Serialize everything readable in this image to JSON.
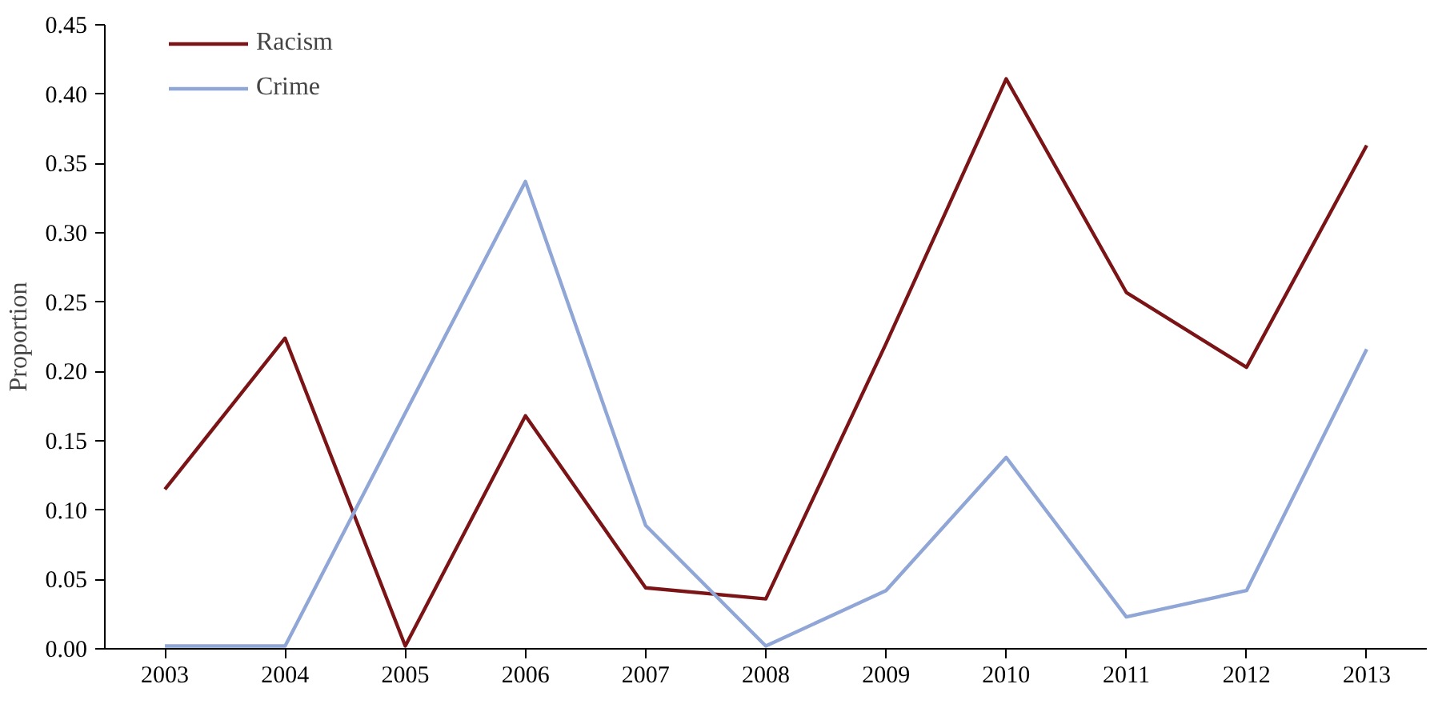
{
  "chart_data": {
    "type": "line",
    "ylabel": "Proportion",
    "categories": [
      "2003",
      "2004",
      "2005",
      "2006",
      "2007",
      "2008",
      "2009",
      "2010",
      "2011",
      "2012",
      "2013"
    ],
    "series": [
      {
        "name": "Racism",
        "color": "#7b1416",
        "values": [
          0.115,
          0.224,
          0.002,
          0.168,
          0.044,
          0.036,
          0.22,
          0.411,
          0.257,
          0.203,
          0.363
        ]
      },
      {
        "name": "Crime",
        "color": "#8fa6d6",
        "values": [
          0.002,
          0.002,
          0.17,
          0.337,
          0.089,
          0.002,
          0.042,
          0.138,
          0.023,
          0.042,
          0.216
        ]
      }
    ],
    "ylim": [
      0,
      0.45
    ],
    "yticks": [
      {
        "value": 0,
        "label": "0.00"
      },
      {
        "value": 0.05,
        "label": "0.05"
      },
      {
        "value": 0.1,
        "label": "0.10"
      },
      {
        "value": 0.15,
        "label": "0.15"
      },
      {
        "value": 0.2,
        "label": "0.20"
      },
      {
        "value": 0.25,
        "label": "0.25"
      },
      {
        "value": 0.3,
        "label": "0.30"
      },
      {
        "value": 0.35,
        "label": "0.35"
      },
      {
        "value": 0.4,
        "label": "0.40"
      },
      {
        "value": 0.45,
        "label": "0.45"
      }
    ],
    "grid": false,
    "legend": "top left",
    "line_style": "solid"
  }
}
